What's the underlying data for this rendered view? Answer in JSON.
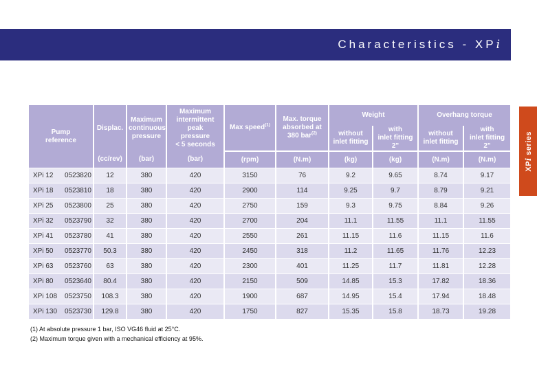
{
  "header": {
    "title_prefix": "Characteristics - XP",
    "title_suffix": "i"
  },
  "side_tab": {
    "prefix": "XP",
    "ital": "i",
    "rest": " series"
  },
  "colors": {
    "band_blue": "#2b2d7e",
    "header_purple": "#b2abd5",
    "row_light": "#eae9f4",
    "row_dark": "#dcdaed",
    "tab_orange": "#cf4a1c"
  },
  "table": {
    "header": {
      "pump_reference": "Pump\nreference",
      "displacement": "Displac.",
      "displacement_unit": "(cc/rev)",
      "max_continuous_pressure": "Maximum\ncontinuous\npressure",
      "max_continuous_pressure_unit": "(bar)",
      "max_intermittent_peak": "Maximum\nintermittent peak\npressure\n< 5 seconds",
      "max_intermittent_peak_unit": "(bar)",
      "max_speed": "Max speed",
      "max_speed_sup": "(1)",
      "max_speed_unit": "(rpm)",
      "max_torque": "Max. torque\nabsorbed at\n380 bar",
      "max_torque_sup": "(2)",
      "max_torque_unit": "(N.m)",
      "weight_group": "Weight",
      "overhang_group": "Overhang torque",
      "without_inlet": "without\ninlet fitting",
      "with_inlet": "with\ninlet fitting 2\"",
      "weight_unit": "(kg)",
      "overhang_unit": "(N.m)"
    },
    "rows": [
      {
        "name": "XPi 12",
        "code": "0523820",
        "displac": "12",
        "cont": "380",
        "peak": "420",
        "speed": "3150",
        "torque": "76",
        "w_without": "9.2",
        "w_with": "9.65",
        "o_without": "8.74",
        "o_with": "9.17"
      },
      {
        "name": "XPi 18",
        "code": "0523810",
        "displac": "18",
        "cont": "380",
        "peak": "420",
        "speed": "2900",
        "torque": "114",
        "w_without": "9.25",
        "w_with": "9.7",
        "o_without": "8.79",
        "o_with": "9.21"
      },
      {
        "name": "XPi 25",
        "code": "0523800",
        "displac": "25",
        "cont": "380",
        "peak": "420",
        "speed": "2750",
        "torque": "159",
        "w_without": "9.3",
        "w_with": "9.75",
        "o_without": "8.84",
        "o_with": "9.26"
      },
      {
        "name": "XPi 32",
        "code": "0523790",
        "displac": "32",
        "cont": "380",
        "peak": "420",
        "speed": "2700",
        "torque": "204",
        "w_without": "11.1",
        "w_with": "11.55",
        "o_without": "11.1",
        "o_with": "11.55"
      },
      {
        "name": "XPi 41",
        "code": "0523780",
        "displac": "41",
        "cont": "380",
        "peak": "420",
        "speed": "2550",
        "torque": "261",
        "w_without": "11.15",
        "w_with": "11.6",
        "o_without": "11.15",
        "o_with": "11.6"
      },
      {
        "name": "XPi 50",
        "code": "0523770",
        "displac": "50.3",
        "cont": "380",
        "peak": "420",
        "speed": "2450",
        "torque": "318",
        "w_without": "11.2",
        "w_with": "11.65",
        "o_without": "11.76",
        "o_with": "12.23"
      },
      {
        "name": "XPi 63",
        "code": "0523760",
        "displac": "63",
        "cont": "380",
        "peak": "420",
        "speed": "2300",
        "torque": "401",
        "w_without": "11.25",
        "w_with": "11.7",
        "o_without": "11.81",
        "o_with": "12.28"
      },
      {
        "name": "XPi 80",
        "code": "0523640",
        "displac": "80.4",
        "cont": "380",
        "peak": "420",
        "speed": "2150",
        "torque": "509",
        "w_without": "14.85",
        "w_with": "15.3",
        "o_without": "17.82",
        "o_with": "18.36"
      },
      {
        "name": "XPi 108",
        "code": "0523750",
        "displac": "108.3",
        "cont": "380",
        "peak": "420",
        "speed": "1900",
        "torque": "687",
        "w_without": "14.95",
        "w_with": "15.4",
        "o_without": "17.94",
        "o_with": "18.48"
      },
      {
        "name": "XPi 130",
        "code": "0523730",
        "displac": "129.8",
        "cont": "380",
        "peak": "420",
        "speed": "1750",
        "torque": "827",
        "w_without": "15.35",
        "w_with": "15.8",
        "o_without": "18.73",
        "o_with": "19.28"
      }
    ]
  },
  "footnotes": [
    "(1) At absolute pressure 1 bar, ISO VG46 fluid at 25°C.",
    "(2) Maximum torque given with a mechanical efficiency at 95%."
  ]
}
